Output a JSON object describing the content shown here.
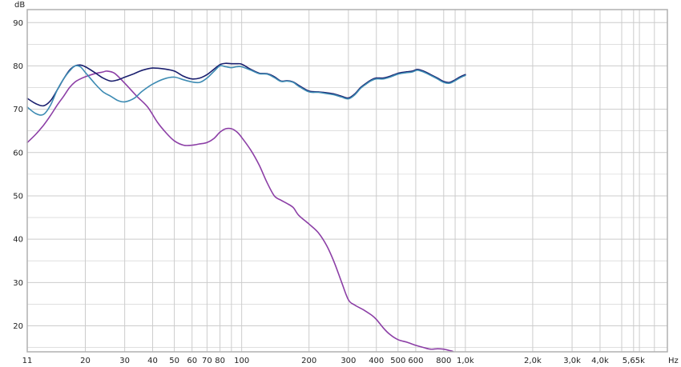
{
  "chart_data": {
    "type": "line",
    "title": "",
    "xlabel": "",
    "ylabel": "",
    "x_scale": "log",
    "x_unit": "Hz",
    "y_unit": "dB",
    "xlim": [
      11,
      8000
    ],
    "ylim": [
      14,
      93
    ],
    "grid": true,
    "legend": "none",
    "colors": {
      "background": "#ffffff",
      "grid": "#cccccc",
      "frame": "#b0b0b0",
      "text": "#222222"
    },
    "x_ticks": [
      {
        "value": 11,
        "label": "11"
      },
      {
        "value": 20,
        "label": "20"
      },
      {
        "value": 30,
        "label": "30"
      },
      {
        "value": 40,
        "label": "40"
      },
      {
        "value": 50,
        "label": "50"
      },
      {
        "value": 60,
        "label": "60"
      },
      {
        "value": 70,
        "label": "70"
      },
      {
        "value": 80,
        "label": "80"
      },
      {
        "value": 100,
        "label": "100"
      },
      {
        "value": 200,
        "label": "200"
      },
      {
        "value": 300,
        "label": "300"
      },
      {
        "value": 400,
        "label": "400"
      },
      {
        "value": 500,
        "label": "500"
      },
      {
        "value": 600,
        "label": "600"
      },
      {
        "value": 800,
        "label": "800"
      },
      {
        "value": 1000,
        "label": "1,0k"
      },
      {
        "value": 2000,
        "label": "2,0k"
      },
      {
        "value": 3000,
        "label": "3,0k"
      },
      {
        "value": 4000,
        "label": "4,0k"
      },
      {
        "value": 5650,
        "label": "5,65k"
      }
    ],
    "x_minor_ticks": [
      90,
      900,
      5000,
      6000,
      7000
    ],
    "y_ticks": [
      {
        "value": 20,
        "label": "20"
      },
      {
        "value": 30,
        "label": "30"
      },
      {
        "value": 40,
        "label": "40"
      },
      {
        "value": 50,
        "label": "50"
      },
      {
        "value": 60,
        "label": "60"
      },
      {
        "value": 70,
        "label": "70"
      },
      {
        "value": 80,
        "label": "80"
      },
      {
        "value": 90,
        "label": "90"
      }
    ],
    "y_minor_ticks": [
      15,
      25,
      35,
      45,
      55,
      65,
      75,
      85
    ],
    "series": [
      {
        "color": "#8c3fa6",
        "points": [
          [
            11,
            62.3
          ],
          [
            12,
            64.2
          ],
          [
            13,
            66.3
          ],
          [
            14,
            68.6
          ],
          [
            15,
            71.0
          ],
          [
            16,
            73.0
          ],
          [
            17,
            75.0
          ],
          [
            18,
            76.3
          ],
          [
            19,
            77.0
          ],
          [
            20,
            77.5
          ],
          [
            22,
            78.2
          ],
          [
            24,
            78.6
          ],
          [
            25,
            78.8
          ],
          [
            27,
            78.3
          ],
          [
            30,
            76.0
          ],
          [
            34,
            73.0
          ],
          [
            38,
            70.5
          ],
          [
            42,
            67.0
          ],
          [
            46,
            64.5
          ],
          [
            50,
            62.7
          ],
          [
            55,
            61.7
          ],
          [
            60,
            61.7
          ],
          [
            65,
            62.0
          ],
          [
            70,
            62.3
          ],
          [
            75,
            63.2
          ],
          [
            80,
            64.7
          ],
          [
            85,
            65.5
          ],
          [
            90,
            65.5
          ],
          [
            95,
            64.8
          ],
          [
            100,
            63.5
          ],
          [
            110,
            60.5
          ],
          [
            120,
            57.0
          ],
          [
            130,
            53.0
          ],
          [
            140,
            50.0
          ],
          [
            150,
            49.0
          ],
          [
            160,
            48.2
          ],
          [
            170,
            47.3
          ],
          [
            180,
            45.5
          ],
          [
            200,
            43.5
          ],
          [
            220,
            41.5
          ],
          [
            240,
            38.5
          ],
          [
            260,
            34.5
          ],
          [
            280,
            30.0
          ],
          [
            300,
            26.0
          ],
          [
            320,
            24.8
          ],
          [
            350,
            23.7
          ],
          [
            380,
            22.5
          ],
          [
            400,
            21.5
          ],
          [
            430,
            19.5
          ],
          [
            460,
            18.0
          ],
          [
            500,
            16.8
          ],
          [
            550,
            16.2
          ],
          [
            600,
            15.5
          ],
          [
            650,
            15.0
          ],
          [
            700,
            14.6
          ],
          [
            750,
            14.7
          ],
          [
            800,
            14.6
          ],
          [
            850,
            14.3
          ],
          [
            880,
            14.1
          ]
        ]
      },
      {
        "color": "#1a1f6e",
        "points": [
          [
            11,
            72.5
          ],
          [
            12,
            71.3
          ],
          [
            13,
            70.8
          ],
          [
            14,
            72.0
          ],
          [
            15,
            74.5
          ],
          [
            16,
            77.0
          ],
          [
            17,
            79.0
          ],
          [
            18,
            80.0
          ],
          [
            19,
            80.2
          ],
          [
            20,
            79.8
          ],
          [
            22,
            78.5
          ],
          [
            24,
            77.2
          ],
          [
            26,
            76.5
          ],
          [
            28,
            76.8
          ],
          [
            30,
            77.4
          ],
          [
            33,
            78.2
          ],
          [
            36,
            79.0
          ],
          [
            40,
            79.5
          ],
          [
            45,
            79.3
          ],
          [
            50,
            78.8
          ],
          [
            55,
            77.6
          ],
          [
            60,
            77.0
          ],
          [
            65,
            77.2
          ],
          [
            70,
            78.0
          ],
          [
            75,
            79.2
          ],
          [
            80,
            80.3
          ],
          [
            85,
            80.6
          ],
          [
            90,
            80.5
          ],
          [
            95,
            80.5
          ],
          [
            100,
            80.4
          ],
          [
            110,
            79.2
          ],
          [
            120,
            78.3
          ],
          [
            130,
            78.2
          ],
          [
            140,
            77.5
          ],
          [
            150,
            76.5
          ],
          [
            160,
            76.6
          ],
          [
            170,
            76.3
          ],
          [
            180,
            75.5
          ],
          [
            200,
            74.2
          ],
          [
            220,
            74.0
          ],
          [
            240,
            73.8
          ],
          [
            260,
            73.5
          ],
          [
            280,
            73.0
          ],
          [
            300,
            72.6
          ],
          [
            320,
            73.5
          ],
          [
            340,
            75.0
          ],
          [
            360,
            76.0
          ],
          [
            380,
            76.8
          ],
          [
            400,
            77.2
          ],
          [
            430,
            77.2
          ],
          [
            460,
            77.6
          ],
          [
            500,
            78.3
          ],
          [
            540,
            78.6
          ],
          [
            580,
            78.8
          ],
          [
            610,
            79.2
          ],
          [
            650,
            78.8
          ],
          [
            700,
            78.0
          ],
          [
            750,
            77.2
          ],
          [
            800,
            76.4
          ],
          [
            850,
            76.2
          ],
          [
            900,
            76.8
          ],
          [
            950,
            77.5
          ],
          [
            1000,
            78.0
          ]
        ]
      },
      {
        "color": "#3d8bb3",
        "points": [
          [
            11,
            70.5
          ],
          [
            12,
            69.0
          ],
          [
            13,
            68.8
          ],
          [
            14,
            71.0
          ],
          [
            15,
            74.5
          ],
          [
            16,
            77.0
          ],
          [
            17,
            78.8
          ],
          [
            18,
            80.0
          ],
          [
            19,
            79.8
          ],
          [
            20,
            78.5
          ],
          [
            22,
            76.0
          ],
          [
            24,
            74.0
          ],
          [
            26,
            73.0
          ],
          [
            28,
            72.0
          ],
          [
            30,
            71.7
          ],
          [
            33,
            72.5
          ],
          [
            36,
            74.2
          ],
          [
            40,
            75.8
          ],
          [
            45,
            77.0
          ],
          [
            50,
            77.4
          ],
          [
            55,
            76.8
          ],
          [
            60,
            76.3
          ],
          [
            65,
            76.2
          ],
          [
            70,
            77.2
          ],
          [
            75,
            78.7
          ],
          [
            80,
            80.0
          ],
          [
            85,
            79.8
          ],
          [
            90,
            79.6
          ],
          [
            95,
            79.8
          ],
          [
            100,
            79.8
          ],
          [
            110,
            79.0
          ],
          [
            120,
            78.2
          ],
          [
            130,
            78.1
          ],
          [
            140,
            77.3
          ],
          [
            150,
            76.4
          ],
          [
            160,
            76.5
          ],
          [
            170,
            76.2
          ],
          [
            180,
            75.3
          ],
          [
            200,
            74.0
          ],
          [
            220,
            73.9
          ],
          [
            240,
            73.6
          ],
          [
            260,
            73.3
          ],
          [
            280,
            72.8
          ],
          [
            300,
            72.4
          ],
          [
            320,
            73.3
          ],
          [
            340,
            74.8
          ],
          [
            360,
            75.8
          ],
          [
            380,
            76.6
          ],
          [
            400,
            77.0
          ],
          [
            430,
            77.0
          ],
          [
            460,
            77.4
          ],
          [
            500,
            78.1
          ],
          [
            540,
            78.4
          ],
          [
            580,
            78.6
          ],
          [
            610,
            79.0
          ],
          [
            650,
            78.6
          ],
          [
            700,
            77.8
          ],
          [
            750,
            77.0
          ],
          [
            800,
            76.2
          ],
          [
            850,
            76.0
          ],
          [
            900,
            76.6
          ],
          [
            950,
            77.3
          ],
          [
            1000,
            77.8
          ]
        ]
      }
    ]
  }
}
